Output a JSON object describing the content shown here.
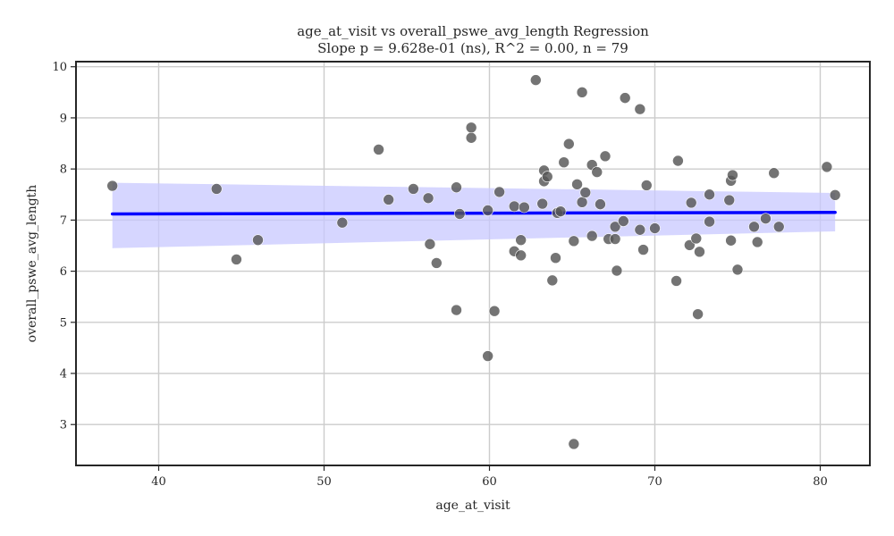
{
  "chart_data": {
    "type": "scatter",
    "title": "age_at_visit vs overall_pswe_avg_length Regression",
    "subtitle": "Slope p = 9.628e-01 (ns), R^2 = 0.00, n = 79",
    "xlabel": "age_at_visit",
    "ylabel": "overall_pswe_avg_length",
    "xlim": [
      35,
      83
    ],
    "ylim": [
      2.2,
      10.1
    ],
    "xticks": [
      40,
      50,
      60,
      70,
      80
    ],
    "yticks": [
      3,
      4,
      5,
      6,
      7,
      8,
      9,
      10
    ],
    "grid": true,
    "legend": "none",
    "colors": {
      "points": "#555555",
      "regression_line": "#0000ff",
      "confidence_band": "#c8c8ff"
    },
    "series": [
      {
        "points": [
          [
            37.2,
            7.67
          ],
          [
            43.5,
            7.61
          ],
          [
            44.7,
            6.23
          ],
          [
            46.0,
            6.61
          ],
          [
            51.1,
            6.95
          ],
          [
            53.3,
            8.38
          ],
          [
            53.9,
            7.4
          ],
          [
            55.4,
            7.61
          ],
          [
            56.3,
            7.43
          ],
          [
            56.4,
            6.53
          ],
          [
            56.8,
            6.16
          ],
          [
            58.0,
            7.64
          ],
          [
            58.0,
            5.24
          ],
          [
            58.2,
            7.12
          ],
          [
            58.9,
            8.81
          ],
          [
            58.9,
            8.61
          ],
          [
            59.9,
            4.34
          ],
          [
            59.9,
            7.19
          ],
          [
            60.3,
            5.22
          ],
          [
            60.6,
            7.55
          ],
          [
            61.5,
            7.27
          ],
          [
            61.5,
            6.39
          ],
          [
            61.9,
            6.61
          ],
          [
            61.9,
            6.31
          ],
          [
            62.1,
            7.25
          ],
          [
            62.8,
            9.74
          ],
          [
            63.2,
            7.32
          ],
          [
            63.3,
            7.97
          ],
          [
            63.3,
            7.76
          ],
          [
            63.5,
            7.85
          ],
          [
            63.8,
            5.82
          ],
          [
            64.0,
            6.26
          ],
          [
            64.1,
            7.14
          ],
          [
            64.3,
            7.17
          ],
          [
            64.5,
            8.13
          ],
          [
            64.8,
            8.49
          ],
          [
            65.1,
            6.59
          ],
          [
            65.1,
            2.62
          ],
          [
            65.3,
            7.7
          ],
          [
            65.6,
            9.5
          ],
          [
            65.6,
            7.35
          ],
          [
            65.8,
            7.54
          ],
          [
            66.2,
            8.08
          ],
          [
            66.2,
            6.69
          ],
          [
            66.5,
            7.94
          ],
          [
            66.7,
            7.31
          ],
          [
            67.0,
            8.25
          ],
          [
            67.2,
            6.63
          ],
          [
            67.6,
            6.87
          ],
          [
            67.6,
            6.63
          ],
          [
            67.7,
            6.01
          ],
          [
            68.1,
            6.98
          ],
          [
            68.2,
            9.39
          ],
          [
            69.1,
            9.17
          ],
          [
            69.1,
            6.81
          ],
          [
            69.3,
            6.42
          ],
          [
            69.5,
            7.68
          ],
          [
            70.0,
            6.84
          ],
          [
            71.3,
            5.81
          ],
          [
            71.4,
            8.16
          ],
          [
            72.1,
            6.51
          ],
          [
            72.2,
            7.34
          ],
          [
            72.5,
            6.64
          ],
          [
            72.6,
            5.16
          ],
          [
            72.7,
            6.38
          ],
          [
            73.3,
            7.5
          ],
          [
            73.3,
            6.97
          ],
          [
            74.5,
            7.39
          ],
          [
            74.6,
            7.77
          ],
          [
            74.6,
            6.6
          ],
          [
            74.7,
            7.88
          ],
          [
            75.0,
            6.03
          ],
          [
            76.0,
            6.87
          ],
          [
            76.2,
            6.57
          ],
          [
            76.7,
            7.03
          ],
          [
            77.2,
            7.92
          ],
          [
            77.5,
            6.87
          ],
          [
            80.4,
            8.04
          ],
          [
            80.9,
            7.49
          ]
        ]
      }
    ],
    "regression": {
      "x": [
        37.2,
        80.9
      ],
      "y": [
        7.12,
        7.15
      ],
      "ci_lower": [
        6.45,
        6.78
      ],
      "ci_upper": [
        7.73,
        7.53
      ]
    }
  }
}
